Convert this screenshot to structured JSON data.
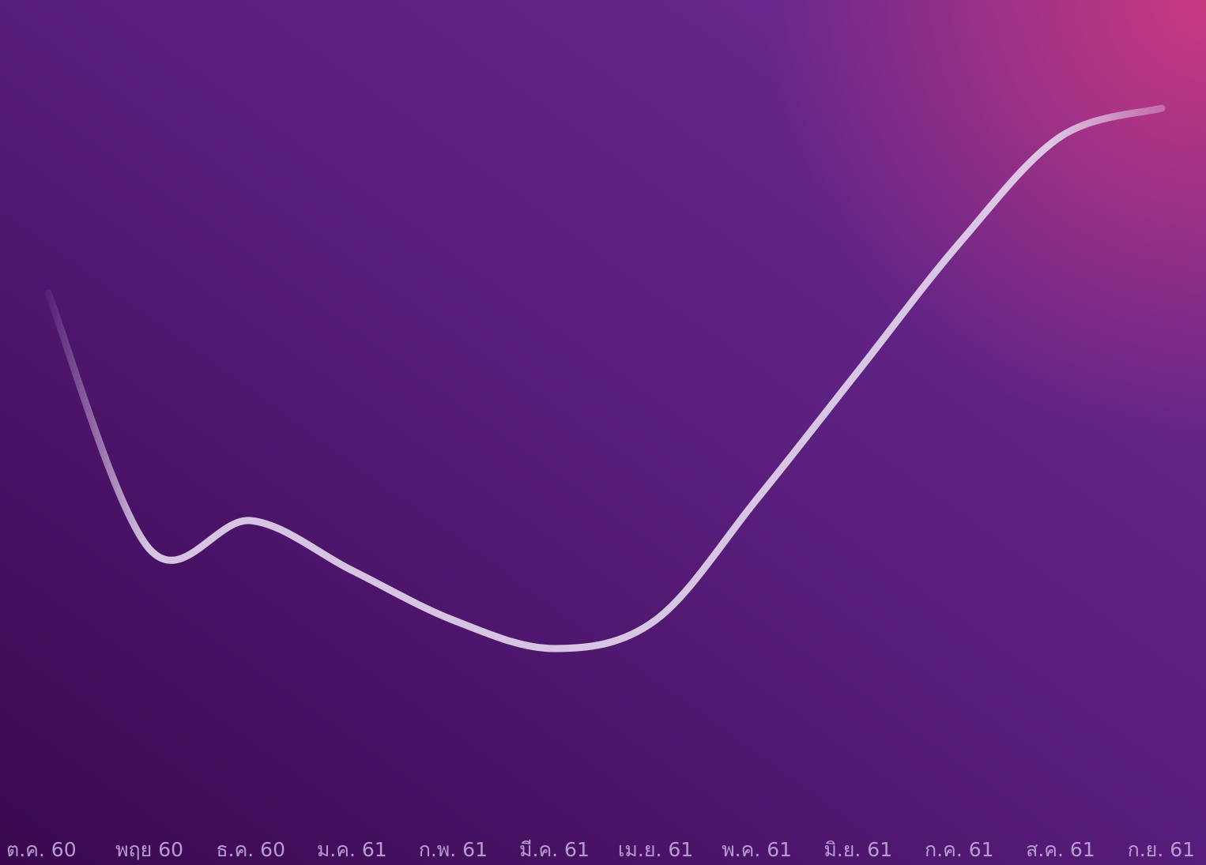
{
  "colors": {
    "background_start": "#3a0750",
    "background_mid": "#5a1f7e",
    "background_end": "#6f2c94",
    "corner_glow": "#d23a7e",
    "line": "#e6d8f0",
    "gridline": "#ffffff",
    "tick_label": "#b69cd0"
  },
  "chart_data": {
    "type": "line",
    "title": "",
    "xlabel": "",
    "ylabel": "",
    "categories": [
      "ต.ค. 60",
      "พฤย 60",
      "ธ.ค. 60",
      "ม.ค. 61",
      "ก.พ. 61",
      "มี.ค. 61",
      "เม.ย. 61",
      "พ.ค. 61",
      "มิ.ย. 61",
      "ก.ค. 61",
      "ส.ค. 61",
      "ก.ย. 61"
    ],
    "values": [
      76,
      40,
      44,
      37,
      30,
      26,
      30,
      47,
      65,
      83,
      98,
      102
    ],
    "ylim": [
      0,
      115
    ],
    "y_axis_visible": false,
    "grid": "vertical",
    "legend": "none"
  }
}
